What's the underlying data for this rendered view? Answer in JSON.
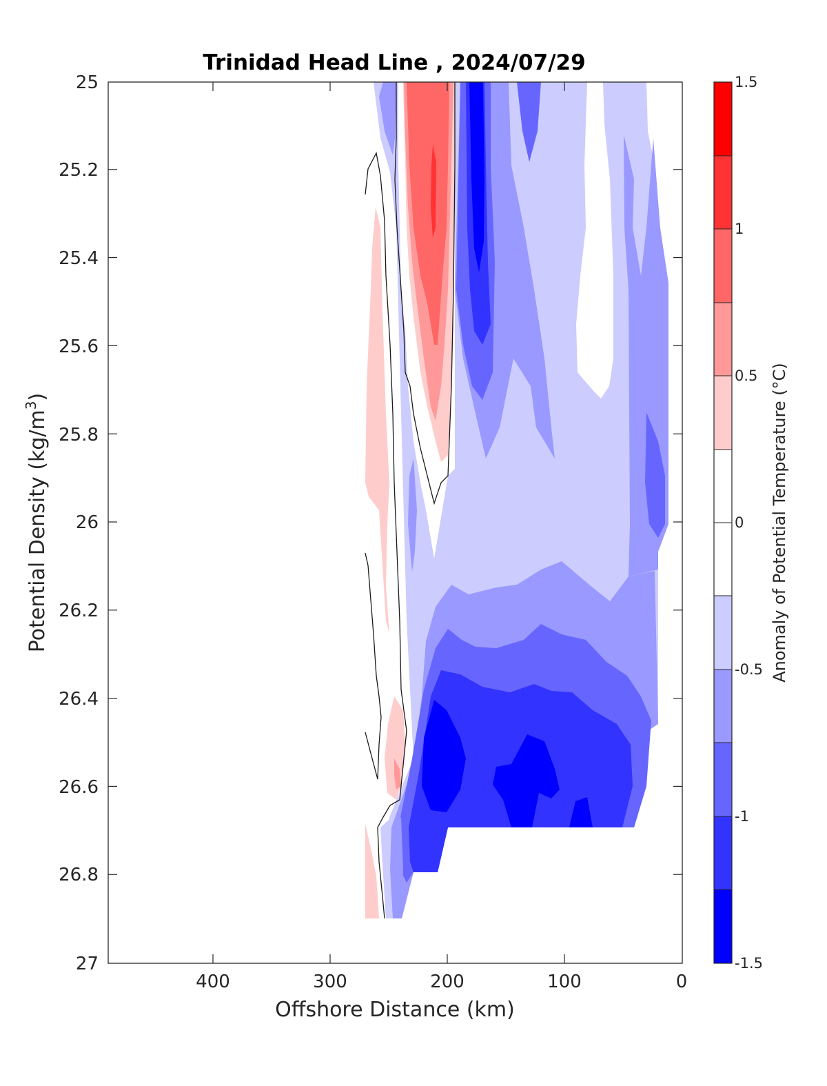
{
  "chart_data": {
    "type": "heatmap",
    "subtype": "filled-contour",
    "title": "Trinidad Head Line , 2024/07/29",
    "xlabel": "Offshore Distance (km)",
    "ylabel": "Potential Density (kg/m",
    "ylabel_sup": "3",
    "ylabel_end": ")",
    "xlim": [
      490,
      0
    ],
    "ylim": [
      27,
      25
    ],
    "x_reversed": true,
    "y_reversed": true,
    "xticks": [
      "400",
      "300",
      "200",
      "100",
      "0"
    ],
    "yticks": [
      "25",
      "25.2",
      "25.4",
      "25.6",
      "25.8",
      "26",
      "26.2",
      "26.4",
      "26.6",
      "26.8",
      "27"
    ],
    "colorbar": {
      "label": "Anomaly of Potential Temperature (°C)",
      "range": [
        -1.5,
        1.5
      ],
      "tick_labels": [
        "1.5",
        "1",
        "0.5",
        "0",
        "-0.5",
        "-1",
        "-1.5"
      ],
      "level_colors": [
        "#0000ff",
        "#3333ff",
        "#6666ff",
        "#9999ff",
        "#ccccff",
        "#ffffff",
        "#ffffff",
        "#ffcccc",
        "#ff9999",
        "#ff6666",
        "#ff3333",
        "#ff0000"
      ]
    },
    "data_coverage": {
      "x_range_km": [
        10,
        270
      ],
      "sigma_range": [
        25.0,
        26.9
      ]
    },
    "features": [
      {
        "anomaly": 1.0,
        "x_km": [
          195,
          235
        ],
        "sigma": [
          25.0,
          25.75
        ]
      },
      {
        "anomaly": 0.35,
        "x_km": [
          255,
          270
        ],
        "sigma": [
          25.3,
          26.7
        ]
      },
      {
        "anomaly": -1.1,
        "x_km": [
          165,
          190
        ],
        "sigma": [
          25.0,
          25.7
        ]
      },
      {
        "anomaly": -0.65,
        "x_km": [
          10,
          175
        ],
        "sigma": [
          25.0,
          26.1
        ]
      },
      {
        "anomaly": -0.3,
        "x_km": [
          20,
          240
        ],
        "sigma": [
          25.0,
          26.2
        ]
      },
      {
        "anomaly": -1.45,
        "x_km": [
          45,
          225
        ],
        "sigma": [
          26.45,
          26.7
        ]
      },
      {
        "anomaly": -1.15,
        "x_km": [
          40,
          235
        ],
        "sigma": [
          26.3,
          26.8
        ]
      },
      {
        "anomaly": 0.0,
        "x_km": [
          40,
          110
        ],
        "sigma": [
          25.0,
          25.72
        ]
      }
    ]
  }
}
